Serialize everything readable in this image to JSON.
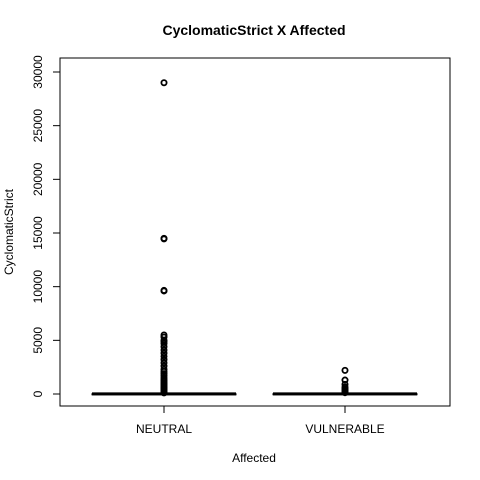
{
  "chart_data": {
    "type": "boxplot",
    "title": "CyclomaticStrict X Affected",
    "xlabel": "Affected",
    "ylabel": "CyclomaticStrict",
    "ylim": [
      0,
      30000
    ],
    "yticks": [
      0,
      5000,
      10000,
      15000,
      20000,
      25000,
      30000
    ],
    "ytick_labels": [
      "0",
      "5000",
      "10000",
      "15000",
      "20000",
      "25000",
      "30000"
    ],
    "categories": [
      "NEUTRAL",
      "VULNERABLE"
    ],
    "series": [
      {
        "category": "NEUTRAL",
        "min": 0,
        "q1": 2,
        "median": 6,
        "q3": 20,
        "max": 50,
        "outliers": [
          29000,
          14500,
          14450,
          9650,
          9600,
          5500,
          5300,
          5000,
          4900,
          4700,
          4400,
          4100,
          3800,
          3500,
          3200,
          2900,
          2600,
          2300,
          2100,
          1900,
          1700,
          1500,
          1350,
          1200,
          1050,
          950,
          850,
          750,
          650,
          550,
          450,
          350,
          250,
          150,
          100
        ]
      },
      {
        "category": "VULNERABLE",
        "min": 0,
        "q1": 2,
        "median": 8,
        "q3": 25,
        "max": 60,
        "outliers": [
          2200,
          1300,
          900,
          650,
          500,
          400,
          300,
          200,
          120
        ]
      }
    ]
  }
}
